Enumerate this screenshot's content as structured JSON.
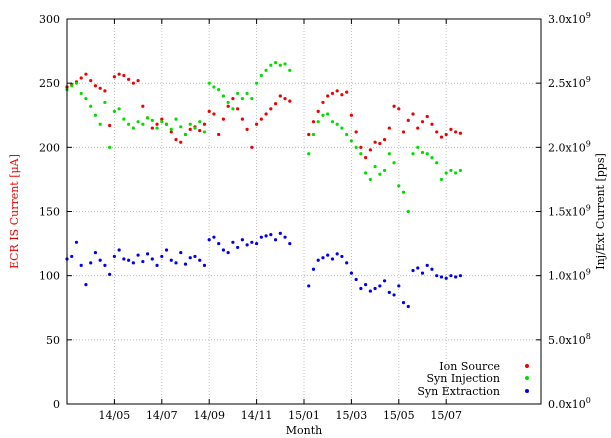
{
  "chart_data": {
    "type": "scatter",
    "title": "",
    "xlabel": "Month",
    "ylabel_left": "ECR IS Current [μA]",
    "ylabel_right": "Inj/Ext Current [pps]",
    "xlim": [
      0,
      20
    ],
    "ylim_left": [
      0,
      300
    ],
    "ylim_right": [
      0,
      3000000000
    ],
    "grid": true,
    "legend_position": "bottom-right",
    "x_ticks": [
      {
        "x": 2,
        "label": "14/05"
      },
      {
        "x": 4,
        "label": "14/07"
      },
      {
        "x": 6,
        "label": "14/09"
      },
      {
        "x": 8,
        "label": "14/11"
      },
      {
        "x": 10,
        "label": "15/01"
      },
      {
        "x": 12,
        "label": "15/03"
      },
      {
        "x": 14,
        "label": "15/05"
      },
      {
        "x": 16,
        "label": "15/07"
      }
    ],
    "y_ticks_left": [
      {
        "y": 0,
        "label": "0"
      },
      {
        "y": 50,
        "label": "50"
      },
      {
        "y": 100,
        "label": "100"
      },
      {
        "y": 150,
        "label": "150"
      },
      {
        "y": 200,
        "label": "200"
      },
      {
        "y": 250,
        "label": "250"
      },
      {
        "y": 300,
        "label": "300"
      }
    ],
    "y_ticks_right": [
      {
        "y": 0,
        "mantissa": "0.0",
        "exp": "0"
      },
      {
        "y": 500000000,
        "mantissa": "5.0",
        "exp": "8"
      },
      {
        "y": 1000000000,
        "mantissa": "1.0",
        "exp": "9"
      },
      {
        "y": 1500000000,
        "mantissa": "1.5",
        "exp": "9"
      },
      {
        "y": 2000000000,
        "mantissa": "2.0",
        "exp": "9"
      },
      {
        "y": 2500000000,
        "mantissa": "2.5",
        "exp": "9"
      },
      {
        "y": 3000000000,
        "mantissa": "3.0",
        "exp": "9"
      }
    ],
    "series": [
      {
        "name": "Ion Source",
        "axis": "left",
        "color": "#ee0000",
        "points": [
          [
            0.0,
            247
          ],
          [
            0.2,
            249
          ],
          [
            0.4,
            251
          ],
          [
            0.6,
            254
          ],
          [
            0.8,
            257
          ],
          [
            1.0,
            252
          ],
          [
            1.2,
            248
          ],
          [
            1.4,
            246
          ],
          [
            1.6,
            244
          ],
          [
            1.8,
            217
          ],
          [
            2.0,
            255
          ],
          [
            2.2,
            257
          ],
          [
            2.4,
            256
          ],
          [
            2.6,
            253
          ],
          [
            2.8,
            250
          ],
          [
            3.0,
            252
          ],
          [
            3.2,
            232
          ],
          [
            3.4,
            223
          ],
          [
            3.6,
            215
          ],
          [
            3.8,
            218
          ],
          [
            4.0,
            222
          ],
          [
            4.2,
            218
          ],
          [
            4.4,
            212
          ],
          [
            4.6,
            206
          ],
          [
            4.8,
            204
          ],
          [
            5.0,
            210
          ],
          [
            5.2,
            214
          ],
          [
            5.4,
            216
          ],
          [
            5.6,
            213
          ],
          [
            5.8,
            218
          ],
          [
            6.0,
            228
          ],
          [
            6.2,
            226
          ],
          [
            6.4,
            210
          ],
          [
            6.6,
            222
          ],
          [
            6.8,
            232
          ],
          [
            7.0,
            238
          ],
          [
            7.2,
            230
          ],
          [
            7.4,
            222
          ],
          [
            7.6,
            214
          ],
          [
            7.8,
            200
          ],
          [
            8.0,
            218
          ],
          [
            8.2,
            222
          ],
          [
            8.4,
            226
          ],
          [
            8.6,
            230
          ],
          [
            8.8,
            234
          ],
          [
            9.0,
            240
          ],
          [
            9.2,
            238
          ],
          [
            9.4,
            236
          ],
          [
            10.2,
            210
          ],
          [
            10.4,
            220
          ],
          [
            10.6,
            228
          ],
          [
            10.8,
            235
          ],
          [
            11.0,
            240
          ],
          [
            11.2,
            242
          ],
          [
            11.4,
            244
          ],
          [
            11.6,
            241
          ],
          [
            11.8,
            243
          ],
          [
            12.0,
            225
          ],
          [
            12.2,
            212
          ],
          [
            12.4,
            200
          ],
          [
            12.6,
            192
          ],
          [
            12.8,
            198
          ],
          [
            13.0,
            204
          ],
          [
            13.2,
            203
          ],
          [
            13.4,
            206
          ],
          [
            13.6,
            215
          ],
          [
            13.8,
            232
          ],
          [
            14.0,
            230
          ],
          [
            14.2,
            212
          ],
          [
            14.4,
            221
          ],
          [
            14.6,
            226
          ],
          [
            14.8,
            215
          ],
          [
            15.0,
            220
          ],
          [
            15.2,
            224
          ],
          [
            15.4,
            218
          ],
          [
            15.6,
            212
          ],
          [
            15.8,
            208
          ],
          [
            16.0,
            210
          ],
          [
            16.2,
            214
          ],
          [
            16.4,
            212
          ],
          [
            16.6,
            211
          ]
        ]
      },
      {
        "name": "Syn Injection",
        "axis": "right",
        "color": "#00dd00",
        "points": [
          [
            0.0,
            2450000000
          ],
          [
            0.2,
            2480000000
          ],
          [
            0.4,
            2500000000
          ],
          [
            0.6,
            2420000000
          ],
          [
            0.8,
            2380000000
          ],
          [
            1.0,
            2320000000
          ],
          [
            1.2,
            2250000000
          ],
          [
            1.4,
            2180000000
          ],
          [
            1.6,
            2350000000
          ],
          [
            1.8,
            2000000000
          ],
          [
            2.0,
            2280000000
          ],
          [
            2.2,
            2300000000
          ],
          [
            2.4,
            2220000000
          ],
          [
            2.6,
            2180000000
          ],
          [
            2.8,
            2150000000
          ],
          [
            3.0,
            2200000000
          ],
          [
            3.2,
            2180000000
          ],
          [
            3.4,
            2230000000
          ],
          [
            3.6,
            2210000000
          ],
          [
            3.8,
            2150000000
          ],
          [
            4.0,
            2200000000
          ],
          [
            4.2,
            2180000000
          ],
          [
            4.4,
            2140000000
          ],
          [
            4.6,
            2220000000
          ],
          [
            4.8,
            2160000000
          ],
          [
            5.0,
            2100000000
          ],
          [
            5.2,
            2180000000
          ],
          [
            5.4,
            2150000000
          ],
          [
            5.6,
            2200000000
          ],
          [
            5.8,
            2120000000
          ],
          [
            6.0,
            2500000000
          ],
          [
            6.2,
            2470000000
          ],
          [
            6.4,
            2450000000
          ],
          [
            6.6,
            2400000000
          ],
          [
            6.8,
            2350000000
          ],
          [
            7.0,
            2300000000
          ],
          [
            7.2,
            2420000000
          ],
          [
            7.4,
            2380000000
          ],
          [
            7.6,
            2420000000
          ],
          [
            7.8,
            2380000000
          ],
          [
            8.0,
            2500000000
          ],
          [
            8.2,
            2560000000
          ],
          [
            8.4,
            2600000000
          ],
          [
            8.6,
            2640000000
          ],
          [
            8.8,
            2660000000
          ],
          [
            9.0,
            2640000000
          ],
          [
            9.2,
            2650000000
          ],
          [
            9.4,
            2600000000
          ],
          [
            10.2,
            1950000000
          ],
          [
            10.4,
            2100000000
          ],
          [
            10.6,
            2200000000
          ],
          [
            10.8,
            2250000000
          ],
          [
            11.0,
            2260000000
          ],
          [
            11.2,
            2200000000
          ],
          [
            11.4,
            2180000000
          ],
          [
            11.6,
            2150000000
          ],
          [
            11.8,
            2100000000
          ],
          [
            12.0,
            2050000000
          ],
          [
            12.2,
            2000000000
          ],
          [
            12.4,
            1950000000
          ],
          [
            12.6,
            1800000000
          ],
          [
            12.8,
            1750000000
          ],
          [
            13.0,
            1850000000
          ],
          [
            13.2,
            1790000000
          ],
          [
            13.4,
            1820000000
          ],
          [
            13.6,
            1950000000
          ],
          [
            13.8,
            1880000000
          ],
          [
            14.0,
            1700000000
          ],
          [
            14.2,
            1650000000
          ],
          [
            14.4,
            1500000000
          ],
          [
            14.6,
            1950000000
          ],
          [
            14.8,
            2000000000
          ],
          [
            15.0,
            1960000000
          ],
          [
            15.2,
            1950000000
          ],
          [
            15.4,
            1920000000
          ],
          [
            15.6,
            1880000000
          ],
          [
            15.8,
            1750000000
          ],
          [
            16.0,
            1800000000
          ],
          [
            16.2,
            1820000000
          ],
          [
            16.4,
            1800000000
          ],
          [
            16.6,
            1820000000
          ]
        ]
      },
      {
        "name": "Syn Extraction",
        "axis": "right",
        "color": "#0000ee",
        "points": [
          [
            0.0,
            1130000000
          ],
          [
            0.2,
            1150000000
          ],
          [
            0.4,
            1260000000
          ],
          [
            0.6,
            1080000000
          ],
          [
            0.8,
            930000000
          ],
          [
            1.0,
            1100000000
          ],
          [
            1.2,
            1180000000
          ],
          [
            1.4,
            1120000000
          ],
          [
            1.6,
            1080000000
          ],
          [
            1.8,
            1010000000
          ],
          [
            2.0,
            1150000000
          ],
          [
            2.2,
            1200000000
          ],
          [
            2.4,
            1130000000
          ],
          [
            2.6,
            1120000000
          ],
          [
            2.8,
            1100000000
          ],
          [
            3.0,
            1160000000
          ],
          [
            3.2,
            1110000000
          ],
          [
            3.4,
            1170000000
          ],
          [
            3.6,
            1130000000
          ],
          [
            3.8,
            1080000000
          ],
          [
            4.0,
            1150000000
          ],
          [
            4.2,
            1200000000
          ],
          [
            4.4,
            1120000000
          ],
          [
            4.6,
            1100000000
          ],
          [
            4.8,
            1180000000
          ],
          [
            5.0,
            1090000000
          ],
          [
            5.2,
            1140000000
          ],
          [
            5.4,
            1150000000
          ],
          [
            5.6,
            1120000000
          ],
          [
            5.8,
            1080000000
          ],
          [
            6.0,
            1280000000
          ],
          [
            6.2,
            1300000000
          ],
          [
            6.4,
            1250000000
          ],
          [
            6.6,
            1200000000
          ],
          [
            6.8,
            1180000000
          ],
          [
            7.0,
            1260000000
          ],
          [
            7.2,
            1220000000
          ],
          [
            7.4,
            1280000000
          ],
          [
            7.6,
            1240000000
          ],
          [
            7.8,
            1260000000
          ],
          [
            8.0,
            1250000000
          ],
          [
            8.2,
            1300000000
          ],
          [
            8.4,
            1310000000
          ],
          [
            8.6,
            1320000000
          ],
          [
            8.8,
            1280000000
          ],
          [
            9.0,
            1330000000
          ],
          [
            9.2,
            1300000000
          ],
          [
            9.4,
            1250000000
          ],
          [
            10.2,
            920000000
          ],
          [
            10.4,
            1050000000
          ],
          [
            10.6,
            1120000000
          ],
          [
            10.8,
            1140000000
          ],
          [
            11.0,
            1160000000
          ],
          [
            11.2,
            1130000000
          ],
          [
            11.4,
            1170000000
          ],
          [
            11.6,
            1150000000
          ],
          [
            11.8,
            1100000000
          ],
          [
            12.0,
            1020000000
          ],
          [
            12.2,
            970000000
          ],
          [
            12.4,
            900000000
          ],
          [
            12.6,
            930000000
          ],
          [
            12.8,
            880000000
          ],
          [
            13.0,
            900000000
          ],
          [
            13.2,
            920000000
          ],
          [
            13.4,
            960000000
          ],
          [
            13.6,
            870000000
          ],
          [
            13.8,
            850000000
          ],
          [
            14.0,
            920000000
          ],
          [
            14.2,
            790000000
          ],
          [
            14.4,
            760000000
          ],
          [
            14.6,
            1040000000
          ],
          [
            14.8,
            1060000000
          ],
          [
            15.0,
            1020000000
          ],
          [
            15.2,
            1080000000
          ],
          [
            15.4,
            1050000000
          ],
          [
            15.6,
            1000000000
          ],
          [
            15.8,
            990000000
          ],
          [
            16.0,
            980000000
          ],
          [
            16.2,
            1000000000
          ],
          [
            16.4,
            990000000
          ],
          [
            16.6,
            1000000000
          ]
        ]
      }
    ]
  }
}
